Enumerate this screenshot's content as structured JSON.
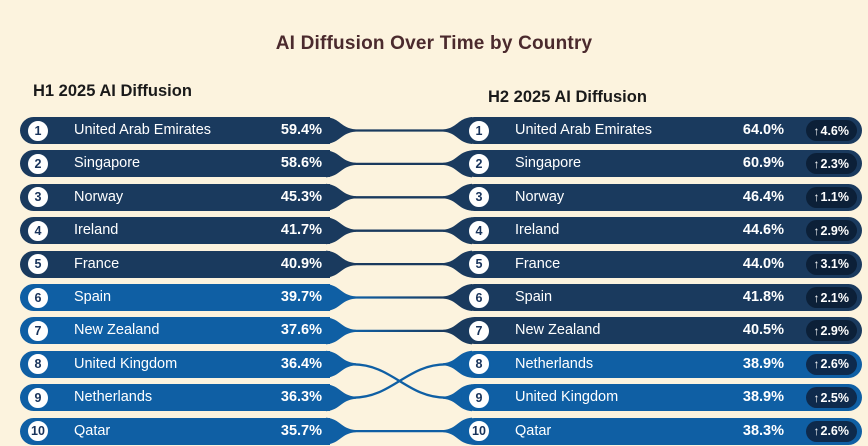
{
  "chart_data": {
    "type": "table",
    "title": "AI Diffusion Over Time by Country",
    "columns": [
      "H1 2025 AI Diffusion",
      "H2 2025 AI Diffusion"
    ],
    "unit": "%",
    "rows": [
      {
        "country": "United Arab Emirates",
        "h1_rank": 1,
        "h1_value": 59.4,
        "h1_theme": "navy",
        "h2_rank": 1,
        "h2_value": 64.0,
        "h2_change": 4.6,
        "h2_theme": "navy"
      },
      {
        "country": "Singapore",
        "h1_rank": 2,
        "h1_value": 58.6,
        "h1_theme": "navy",
        "h2_rank": 2,
        "h2_value": 60.9,
        "h2_change": 2.3,
        "h2_theme": "navy"
      },
      {
        "country": "Norway",
        "h1_rank": 3,
        "h1_value": 45.3,
        "h1_theme": "navy",
        "h2_rank": 3,
        "h2_value": 46.4,
        "h2_change": 1.1,
        "h2_theme": "navy"
      },
      {
        "country": "Ireland",
        "h1_rank": 4,
        "h1_value": 41.7,
        "h1_theme": "navy",
        "h2_rank": 4,
        "h2_value": 44.6,
        "h2_change": 2.9,
        "h2_theme": "navy"
      },
      {
        "country": "France",
        "h1_rank": 5,
        "h1_value": 40.9,
        "h1_theme": "navy",
        "h2_rank": 5,
        "h2_value": 44.0,
        "h2_change": 3.1,
        "h2_theme": "navy"
      },
      {
        "country": "Spain",
        "h1_rank": 6,
        "h1_value": 39.7,
        "h1_theme": "blue",
        "h2_rank": 6,
        "h2_value": 41.8,
        "h2_change": 2.1,
        "h2_theme": "navy"
      },
      {
        "country": "New Zealand",
        "h1_rank": 7,
        "h1_value": 37.6,
        "h1_theme": "blue",
        "h2_rank": 7,
        "h2_value": 40.5,
        "h2_change": 2.9,
        "h2_theme": "navy"
      },
      {
        "country": "United Kingdom",
        "h1_rank": 8,
        "h1_value": 36.4,
        "h1_theme": "blue",
        "h2_rank": 9,
        "h2_value": 38.9,
        "h2_change": 2.5,
        "h2_theme": "blue"
      },
      {
        "country": "Netherlands",
        "h1_rank": 9,
        "h1_value": 36.3,
        "h1_theme": "blue",
        "h2_rank": 8,
        "h2_value": 38.9,
        "h2_change": 2.6,
        "h2_theme": "blue"
      },
      {
        "country": "Qatar",
        "h1_rank": 10,
        "h1_value": 35.7,
        "h1_theme": "blue",
        "h2_rank": 10,
        "h2_value": 38.3,
        "h2_change": 2.6,
        "h2_theme": "blue"
      }
    ]
  },
  "colors": {
    "background": "#fcf3de",
    "navy": "#1a3a5e",
    "blue": "#0f5fa4",
    "badge_navy": "#0c2038",
    "badge_blue": "#0e2a4c",
    "rank_text": "#17325a",
    "title": "#4b2a2d",
    "header_text": "#1a1a1a",
    "row_text": "#ffffff"
  },
  "icons": {
    "up_arrow": "↑"
  }
}
